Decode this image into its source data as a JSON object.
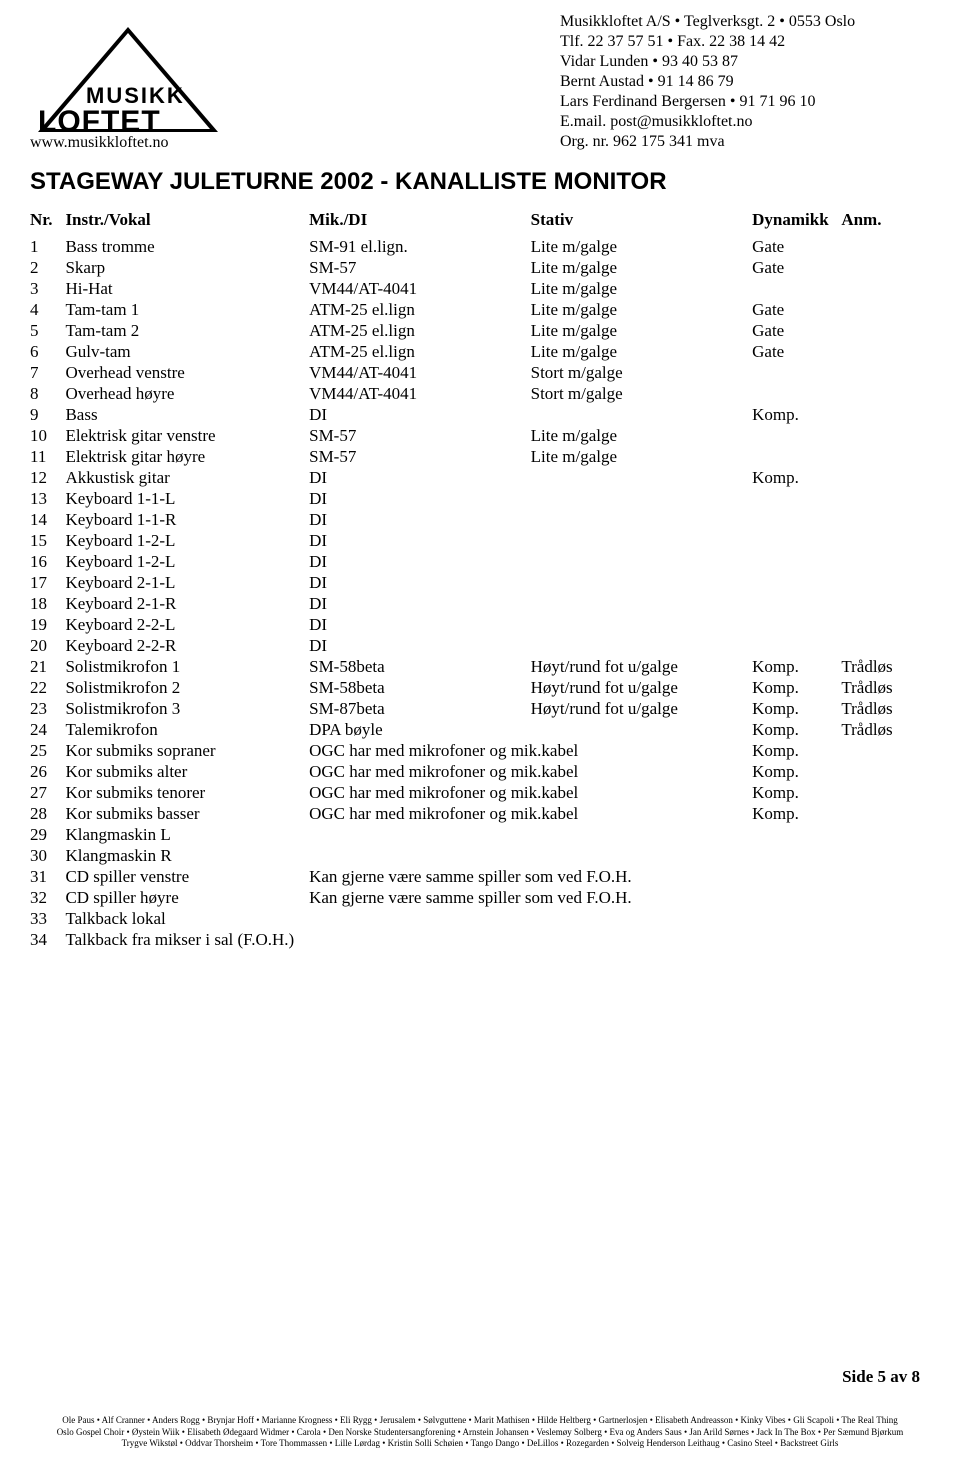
{
  "logo": {
    "line1": "MUSIKK",
    "line2": "LOFTET",
    "url": "www.musikkloftet.no"
  },
  "company": {
    "l1": "Musikkloftet A/S • Teglverksgt. 2 • 0553 Oslo",
    "l2": "Tlf. 22 37 57 51 • Fax. 22 38 14 42",
    "l3": "Vidar Lunden • 93 40 53 87",
    "l4": "Bernt Austad • 91 14 86 79",
    "l5": "Lars Ferdinand Bergersen • 91 71 96 10",
    "l6": "E.mail. post@musikkloftet.no",
    "l7": "Org. nr. 962 175 341 mva"
  },
  "title": "STAGEWAY JULETURNE 2002 - KANALLISTE MONITOR",
  "headers": {
    "nr": "Nr.",
    "instr": "Instr./Vokal",
    "mik": "Mik./DI",
    "stativ": "Stativ",
    "dyn": "Dynamikk",
    "anm": "Anm."
  },
  "rows": [
    {
      "nr": "1",
      "instr": "Bass tromme",
      "mik": "SM-91 el.lign.",
      "stativ": "Lite m/galge",
      "dyn": "Gate",
      "anm": ""
    },
    {
      "nr": "2",
      "instr": "Skarp",
      "mik": "SM-57",
      "stativ": "Lite m/galge",
      "dyn": "Gate",
      "anm": ""
    },
    {
      "nr": "3",
      "instr": "Hi-Hat",
      "mik": "VM44/AT-4041",
      "stativ": "Lite m/galge",
      "dyn": "",
      "anm": ""
    },
    {
      "nr": "4",
      "instr": "Tam-tam 1",
      "mik": "ATM-25 el.lign",
      "stativ": "Lite m/galge",
      "dyn": "Gate",
      "anm": ""
    },
    {
      "nr": "5",
      "instr": "Tam-tam 2",
      "mik": "ATM-25 el.lign",
      "stativ": "Lite m/galge",
      "dyn": "Gate",
      "anm": ""
    },
    {
      "nr": "6",
      "instr": "Gulv-tam",
      "mik": "ATM-25 el.lign",
      "stativ": "Lite m/galge",
      "dyn": "Gate",
      "anm": ""
    },
    {
      "nr": "7",
      "instr": "Overhead venstre",
      "mik": "VM44/AT-4041",
      "stativ": "Stort m/galge",
      "dyn": "",
      "anm": ""
    },
    {
      "nr": "8",
      "instr": "Overhead høyre",
      "mik": "VM44/AT-4041",
      "stativ": "Stort m/galge",
      "dyn": "",
      "anm": ""
    },
    {
      "nr": "9",
      "instr": "Bass",
      "mik": "DI",
      "stativ": "",
      "dyn": "Komp.",
      "anm": ""
    },
    {
      "nr": "10",
      "instr": "Elektrisk gitar venstre",
      "mik": "SM-57",
      "stativ": "Lite m/galge",
      "dyn": "",
      "anm": ""
    },
    {
      "nr": "11",
      "instr": "Elektrisk gitar høyre",
      "mik": "SM-57",
      "stativ": "Lite m/galge",
      "dyn": "",
      "anm": ""
    },
    {
      "nr": "12",
      "instr": "Akkustisk gitar",
      "mik": "DI",
      "stativ": "",
      "dyn": "Komp.",
      "anm": ""
    },
    {
      "nr": "13",
      "instr": "Keyboard 1-1-L",
      "mik": "DI",
      "stativ": "",
      "dyn": "",
      "anm": ""
    },
    {
      "nr": "14",
      "instr": "Keyboard 1-1-R",
      "mik": "DI",
      "stativ": "",
      "dyn": "",
      "anm": ""
    },
    {
      "nr": "15",
      "instr": "Keyboard 1-2-L",
      "mik": "DI",
      "stativ": "",
      "dyn": "",
      "anm": ""
    },
    {
      "nr": "16",
      "instr": "Keyboard 1-2-L",
      "mik": "DI",
      "stativ": "",
      "dyn": "",
      "anm": ""
    },
    {
      "nr": "17",
      "instr": "Keyboard 2-1-L",
      "mik": "DI",
      "stativ": "",
      "dyn": "",
      "anm": ""
    },
    {
      "nr": "18",
      "instr": "Keyboard 2-1-R",
      "mik": "DI",
      "stativ": "",
      "dyn": "",
      "anm": ""
    },
    {
      "nr": "19",
      "instr": "Keyboard 2-2-L",
      "mik": "DI",
      "stativ": "",
      "dyn": "",
      "anm": ""
    },
    {
      "nr": "20",
      "instr": "Keyboard 2-2-R",
      "mik": "DI",
      "stativ": "",
      "dyn": "",
      "anm": ""
    },
    {
      "nr": "21",
      "instr": "Solistmikrofon 1",
      "mik": "SM-58beta",
      "stativ": "Høyt/rund fot u/galge",
      "dyn": "Komp.",
      "anm": "Trådløs"
    },
    {
      "nr": "22",
      "instr": "Solistmikrofon 2",
      "mik": "SM-58beta",
      "stativ": "Høyt/rund fot u/galge",
      "dyn": "Komp.",
      "anm": "Trådløs"
    },
    {
      "nr": "23",
      "instr": "Solistmikrofon 3",
      "mik": "SM-87beta",
      "stativ": "Høyt/rund fot u/galge",
      "dyn": "Komp.",
      "anm": "Trådløs"
    },
    {
      "nr": "24",
      "instr": "Talemikrofon",
      "mik": "DPA bøyle",
      "stativ": "",
      "dyn": "Komp.",
      "anm": "Trådløs"
    },
    {
      "nr": "25",
      "instr": "Kor submiks sopraner",
      "mik": "OGC har med mikrofoner og mik.kabel",
      "stativ": "",
      "dyn": "Komp.",
      "anm": "",
      "span": true
    },
    {
      "nr": "26",
      "instr": "Kor submiks alter",
      "mik": "OGC har med mikrofoner og mik.kabel",
      "stativ": "",
      "dyn": "Komp.",
      "anm": "",
      "span": true
    },
    {
      "nr": "27",
      "instr": "Kor submiks tenorer",
      "mik": "OGC har med mikrofoner og mik.kabel",
      "stativ": "",
      "dyn": "Komp.",
      "anm": "",
      "span": true
    },
    {
      "nr": "28",
      "instr": "Kor submiks basser",
      "mik": "OGC har med mikrofoner og mik.kabel",
      "stativ": "",
      "dyn": "Komp.",
      "anm": "",
      "span": true
    },
    {
      "nr": "29",
      "instr": "Klangmaskin L",
      "mik": "",
      "stativ": "",
      "dyn": "",
      "anm": ""
    },
    {
      "nr": "30",
      "instr": "Klangmaskin R",
      "mik": "",
      "stativ": "",
      "dyn": "",
      "anm": ""
    },
    {
      "nr": "31",
      "instr": "CD spiller venstre",
      "mik": "Kan gjerne være samme spiller som ved F.O.H.",
      "stativ": "",
      "dyn": "",
      "anm": "",
      "span": true
    },
    {
      "nr": "32",
      "instr": "CD spiller høyre",
      "mik": "Kan gjerne være samme spiller som ved F.O.H.",
      "stativ": "",
      "dyn": "",
      "anm": "",
      "span": true
    },
    {
      "nr": "33",
      "instr": "Talkback lokal",
      "mik": "",
      "stativ": "",
      "dyn": "",
      "anm": ""
    },
    {
      "nr": "34",
      "instr": "Talkback fra mikser i sal (F.O.H.)",
      "mik": "",
      "stativ": "",
      "dyn": "",
      "anm": "",
      "instrspan": true
    }
  ],
  "pagenum": "Side 5 av 8",
  "footer": {
    "l1": "Ole Paus • Alf Cranner • Anders Rogg • Brynjar Hoff • Marianne Krogness • Eli Rygg • Jerusalem • Sølvguttene • Marit Mathisen • Hilde Heltberg • Gartnerlosjen • Elisabeth Andreasson • Kinky Vibes • Gli Scapoli • The Real Thing",
    "l2": "Oslo Gospel Choir • Øystein Wiik • Elisabeth Ødegaard Widmer • Carola • Den Norske Studentersangforening • Arnstein Johansen • Veslemøy Solberg • Eva og Anders Saus • Jan Arild Sørnes • Jack In The Box • Per Sæmund Bjørkum",
    "l3": "Trygve Wikstøl • Oddvar Thorsheim • Tore Thommassen • Lille Lørdag • Kristin Solli Schøien • Tango Dango • DeLillos • Rozegarden • Solveig Henderson Leithaug • Casino Steel • Backstreet Girls"
  }
}
